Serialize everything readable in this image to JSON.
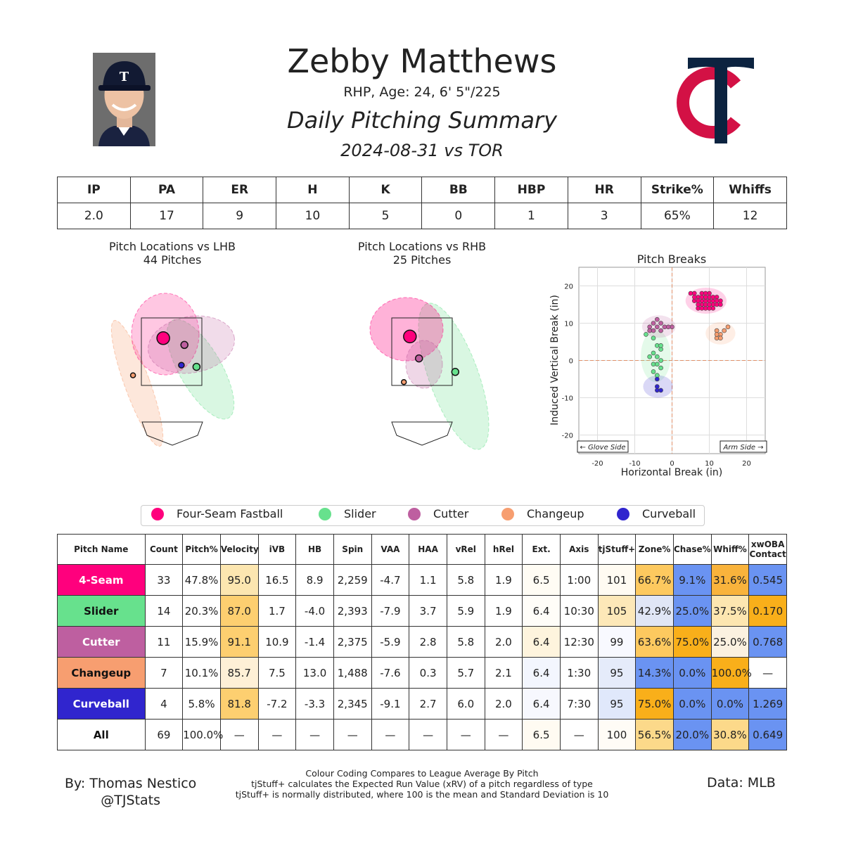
{
  "header": {
    "name": "Zebby Matthews",
    "bio": "RHP, Age: 24, 6' 5\"/225",
    "title": "Daily Pitching Summary",
    "game": "2024-08-31 vs TOR"
  },
  "summary": {
    "headers": [
      "IP",
      "PA",
      "ER",
      "H",
      "K",
      "BB",
      "HBP",
      "HR",
      "Strike%",
      "Whiffs"
    ],
    "values": [
      "2.0",
      "17",
      "9",
      "10",
      "5",
      "0",
      "1",
      "3",
      "65%",
      "12"
    ]
  },
  "plots": {
    "lhb_title": "Pitch Locations vs LHB",
    "lhb_sub": "44 Pitches",
    "rhb_title": "Pitch Locations vs RHB",
    "rhb_sub": "25 Pitches",
    "breaks_title": "Pitch Breaks"
  },
  "legend": [
    {
      "name": "Four-Seam Fastball",
      "color": "#FF007D"
    },
    {
      "name": "Slider",
      "color": "#67E18D"
    },
    {
      "name": "Cutter",
      "color": "#BE5FA0"
    },
    {
      "name": "Changeup",
      "color": "#F79E70"
    },
    {
      "name": "Curveball",
      "color": "#3025CE"
    }
  ],
  "chart_data": [
    {
      "type": "scatter",
      "title": "Pitch Breaks",
      "xlabel": "Horizontal Break (in)",
      "ylabel": "Induced Vertical Break (in)",
      "xlim": [
        -25,
        25
      ],
      "ylim": [
        -25,
        25
      ],
      "xticks": [
        -20,
        -10,
        0,
        10,
        20
      ],
      "yticks": [
        -20,
        -10,
        0,
        10,
        20
      ],
      "grid": true,
      "annotations": [
        "← Glove Side",
        "Arm Side →"
      ],
      "series": [
        {
          "name": "Four-Seam Fastball",
          "color": "#FF007D",
          "points": [
            [
              5,
              18
            ],
            [
              6,
              16
            ],
            [
              7,
              17
            ],
            [
              8,
              15
            ],
            [
              9,
              17
            ],
            [
              10,
              16
            ],
            [
              11,
              15
            ],
            [
              12,
              17
            ],
            [
              7,
              14
            ],
            [
              9,
              14
            ],
            [
              8,
              18
            ],
            [
              10,
              18
            ],
            [
              11,
              14
            ],
            [
              13,
              16
            ],
            [
              6,
              18
            ],
            [
              9,
              16
            ],
            [
              12,
              15
            ],
            [
              8,
              16
            ],
            [
              10,
              17
            ],
            [
              7,
              16
            ],
            [
              11,
              16
            ],
            [
              9,
              15
            ],
            [
              10,
              14
            ],
            [
              8,
              17
            ],
            [
              6,
              17
            ],
            [
              12,
              16
            ],
            [
              9,
              18
            ],
            [
              11,
              17
            ],
            [
              7,
              15
            ],
            [
              10,
              15
            ],
            [
              8,
              14
            ],
            [
              13,
              15
            ],
            [
              9,
              17
            ]
          ]
        },
        {
          "name": "Slider",
          "color": "#67E18D",
          "points": [
            [
              -7,
              7
            ],
            [
              -5,
              6
            ],
            [
              -4,
              4
            ],
            [
              -3,
              3
            ],
            [
              -5,
              2
            ],
            [
              -4,
              1
            ],
            [
              -3,
              0
            ],
            [
              -5,
              -1
            ],
            [
              -4,
              -1
            ],
            [
              -3,
              -2
            ],
            [
              -5,
              -3
            ],
            [
              -4,
              -4
            ],
            [
              -6,
              1
            ],
            [
              -3,
              4
            ]
          ]
        },
        {
          "name": "Cutter",
          "color": "#BE5FA0",
          "points": [
            [
              -6,
              9
            ],
            [
              -5,
              10
            ],
            [
              -4,
              11
            ],
            [
              -3,
              10
            ],
            [
              -2,
              9
            ],
            [
              -5,
              8
            ],
            [
              -4,
              9
            ],
            [
              -3,
              8
            ],
            [
              -6,
              8
            ],
            [
              0,
              9
            ],
            [
              -1,
              9
            ]
          ]
        },
        {
          "name": "Changeup",
          "color": "#F79E70",
          "points": [
            [
              12,
              8
            ],
            [
              13,
              7
            ],
            [
              14,
              8
            ],
            [
              12,
              6
            ],
            [
              13,
              6
            ],
            [
              15,
              9
            ],
            [
              12,
              7
            ]
          ]
        },
        {
          "name": "Curveball",
          "color": "#3025CE",
          "points": [
            [
              -4,
              -5
            ],
            [
              -4,
              -8
            ],
            [
              -3,
              -8
            ],
            [
              -4,
              -7
            ]
          ]
        }
      ]
    },
    {
      "type": "scatter",
      "title": "Pitch Locations vs LHB",
      "subtitle": "44 Pitches",
      "series": [
        {
          "name": "Four-Seam Fastball",
          "color": "#FF007D",
          "points": [
            [
              -0.3,
              2.9
            ]
          ]
        },
        {
          "name": "Cutter",
          "color": "#BE5FA0",
          "points": [
            [
              0.4,
              2.7
            ]
          ]
        },
        {
          "name": "Curveball",
          "color": "#3025CE",
          "points": [
            [
              0.3,
              2.1
            ]
          ]
        },
        {
          "name": "Slider",
          "color": "#67E18D",
          "points": [
            [
              0.8,
              2.05
            ]
          ]
        },
        {
          "name": "Changeup",
          "color": "#F79E70",
          "points": [
            [
              -1.3,
              1.8
            ]
          ]
        }
      ]
    },
    {
      "type": "scatter",
      "title": "Pitch Locations vs RHB",
      "subtitle": "25 Pitches",
      "series": [
        {
          "name": "Four-Seam Fastball",
          "color": "#FF007D",
          "points": [
            [
              -0.4,
              2.95
            ]
          ]
        },
        {
          "name": "Cutter",
          "color": "#BE5FA0",
          "points": [
            [
              -0.1,
              2.3
            ]
          ]
        },
        {
          "name": "Slider",
          "color": "#67E18D",
          "points": [
            [
              1.1,
              1.9
            ]
          ]
        },
        {
          "name": "Changeup",
          "color": "#F79E70",
          "points": [
            [
              -0.6,
              1.6
            ]
          ]
        }
      ]
    }
  ],
  "pitch_table": {
    "headers": [
      "Pitch Name",
      "Count",
      "Pitch%",
      "Velocity",
      "iVB",
      "HB",
      "Spin",
      "VAA",
      "HAA",
      "vRel",
      "hRel",
      "Ext.",
      "Axis",
      "tjStuff+",
      "Zone%",
      "Chase%",
      "Whiff%",
      "xwOBA Contact"
    ],
    "rows": [
      {
        "name": "4-Seam",
        "color": "#FF007D",
        "textcolor": "#ffffff",
        "cells": [
          "33",
          "47.8%",
          "95.0",
          "16.5",
          "8.9",
          "2,259",
          "-4.7",
          "1.1",
          "5.8",
          "1.9",
          "6.5",
          "1:00",
          "101",
          "66.7%",
          "9.1%",
          "31.6%",
          "0.545"
        ],
        "bg": {
          "3": "#FCE6B0",
          "11": "#FFFCF4",
          "13": "#FFFBF2",
          "14": "#FDC95F",
          "15": "#6A93F2",
          "16": "#F9B33C",
          "17": "#6A93F2"
        }
      },
      {
        "name": "Slider",
        "color": "#67E18D",
        "textcolor": "#111111",
        "cells": [
          "14",
          "20.3%",
          "87.0",
          "1.7",
          "-4.0",
          "2,393",
          "-7.9",
          "3.7",
          "5.9",
          "1.9",
          "6.4",
          "10:30",
          "105",
          "42.9%",
          "25.0%",
          "37.5%",
          "0.170"
        ],
        "bg": {
          "3": "#FDCF70",
          "11": "#FFFDF8",
          "13": "#FDE8B8",
          "14": "#E0E6F6",
          "15": "#6A93F2",
          "16": "#FDE6B0",
          "17": "#F9AF1A"
        }
      },
      {
        "name": "Cutter",
        "color": "#BE5FA0",
        "textcolor": "#ffffff",
        "cells": [
          "11",
          "15.9%",
          "91.1",
          "10.9",
          "-1.4",
          "2,375",
          "-5.9",
          "2.8",
          "5.8",
          "2.0",
          "6.4",
          "12:30",
          "99",
          "63.6%",
          "75.0%",
          "25.0%",
          "0.768"
        ],
        "bg": {
          "3": "#FDCF70",
          "11": "#FEF4DD",
          "13": "#F8F9FF",
          "14": "#FDC95F",
          "15": "#F9AF1A",
          "16": "#FBF1E0",
          "17": "#6A93F2"
        }
      },
      {
        "name": "Changeup",
        "color": "#F79E70",
        "textcolor": "#111111",
        "cells": [
          "7",
          "10.1%",
          "85.7",
          "7.5",
          "13.0",
          "1,488",
          "-7.6",
          "0.3",
          "5.7",
          "2.1",
          "6.4",
          "1:30",
          "95",
          "14.3%",
          "0.0%",
          "100.0%",
          "—"
        ],
        "bg": {
          "3": "#FEF0D6",
          "11": "#F3F6FE",
          "13": "#E5EBFA",
          "14": "#6A93F2",
          "15": "#6A93F2",
          "16": "#F9AF1A"
        }
      },
      {
        "name": "Curveball",
        "color": "#3025CE",
        "textcolor": "#ffffff",
        "cells": [
          "4",
          "5.8%",
          "81.8",
          "-7.2",
          "-3.3",
          "2,345",
          "-9.1",
          "2.7",
          "6.0",
          "2.0",
          "6.4",
          "7:30",
          "95",
          "75.0%",
          "0.0%",
          "0.0%",
          "1.269"
        ],
        "bg": {
          "3": "#FDCF70",
          "11": "#F7F8FE",
          "13": "#E0E8FB",
          "14": "#F9AF1A",
          "15": "#6A93F2",
          "16": "#6A93F2",
          "17": "#6A93F2"
        }
      },
      {
        "name": "All",
        "color": "#ffffff",
        "textcolor": "#111111",
        "cells": [
          "69",
          "100.0%",
          "—",
          "—",
          "—",
          "—",
          "—",
          "—",
          "—",
          "—",
          "6.5",
          "—",
          "100",
          "56.5%",
          "20.0%",
          "30.8%",
          "0.649"
        ],
        "bg": {
          "11": "#FFFBF2",
          "13": "#FFFCF6",
          "14": "#FCD98A",
          "15": "#6A93F2",
          "16": "#FCD98A",
          "17": "#6A93F2"
        }
      }
    ]
  },
  "footer": {
    "author": "By: Thomas Nestico",
    "handle": "@TJStats",
    "note1": "Colour Coding Compares to League Average By Pitch",
    "note2": "tjStuff+ calculates the Expected Run Value (xRV) of a pitch regardless of type",
    "note3": "tjStuff+ is normally distributed, where 100 is the mean and Standard Deviation is 10",
    "source": "Data: MLB"
  }
}
